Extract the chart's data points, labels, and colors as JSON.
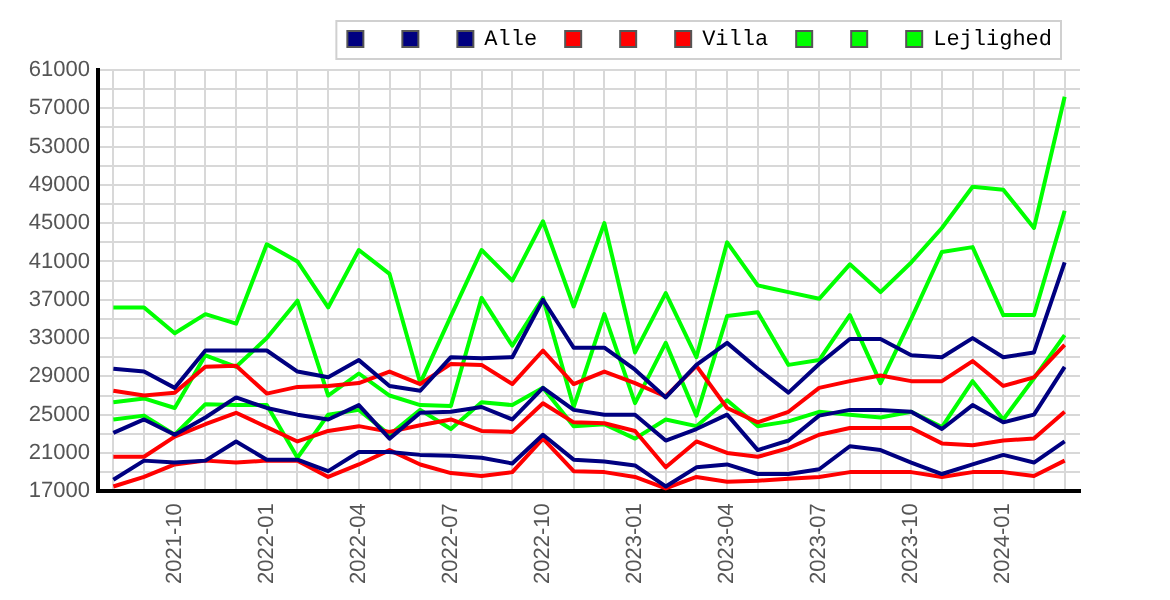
{
  "chart_data": {
    "type": "line",
    "categories": [
      null,
      null,
      "2021-10",
      null,
      null,
      "2022-01",
      null,
      null,
      "2022-04",
      null,
      null,
      "2022-07",
      null,
      null,
      "2022-10",
      null,
      null,
      "2023-01",
      null,
      null,
      "2023-04",
      null,
      null,
      "2023-07",
      null,
      null,
      "2023-10",
      null,
      null,
      "2024-01",
      null,
      null
    ],
    "series": [
      {
        "color": "#000080",
        "values": [
          18200,
          20200,
          20000,
          20200,
          22200,
          20300,
          20300,
          19100,
          21100,
          21100,
          20800,
          20700,
          20500,
          19900,
          22900,
          20300,
          20100,
          19700,
          17500,
          19500,
          19800,
          18800,
          18800,
          19300,
          21700,
          21300,
          20000,
          18800,
          19800,
          20800,
          20000,
          22200
        ]
      },
      {
        "color": "#000080",
        "values": [
          29800,
          29500,
          27800,
          31700,
          31700,
          31700,
          29500,
          28900,
          30700,
          28000,
          27500,
          31000,
          30900,
          31000,
          37000,
          32000,
          32000,
          29700,
          26800,
          30200,
          32500,
          29800,
          27300,
          30300,
          32900,
          32900,
          31200,
          31000,
          33000,
          31000,
          31500,
          40900
        ]
      },
      {
        "name": "Alle",
        "color": "#000080",
        "values": [
          23100,
          24500,
          22900,
          24700,
          26800,
          25700,
          25000,
          24500,
          26000,
          22500,
          25200,
          25300,
          25800,
          24500,
          27800,
          25500,
          25000,
          25000,
          22300,
          23500,
          25000,
          21300,
          22300,
          24900,
          25500,
          25500,
          25300,
          23500,
          26000,
          24200,
          25000,
          30000
        ]
      },
      {
        "color": "#ff0000",
        "values": [
          17500,
          18500,
          19800,
          20200,
          20000,
          20200,
          20200,
          18500,
          19800,
          21300,
          19800,
          18900,
          18600,
          19000,
          22500,
          19100,
          19000,
          18500,
          17300,
          18500,
          18000,
          18100,
          18300,
          18500,
          19000,
          19000,
          19000,
          18500,
          19000,
          19000,
          18600,
          20200
        ]
      },
      {
        "color": "#ff0000",
        "values": [
          27500,
          27000,
          27300,
          30000,
          30100,
          27200,
          27900,
          28000,
          28300,
          29500,
          28200,
          30300,
          30200,
          28200,
          31700,
          28200,
          29500,
          28300,
          26900,
          30100,
          25700,
          24200,
          25300,
          27800,
          28500,
          29100,
          28500,
          28500,
          30600,
          28000,
          28900,
          32300
        ]
      },
      {
        "name": "Villa",
        "color": "#ff0000",
        "values": [
          20600,
          20600,
          22700,
          24000,
          25200,
          23700,
          22200,
          23300,
          23800,
          23200,
          23900,
          24500,
          23300,
          23200,
          26200,
          24200,
          24100,
          23300,
          19500,
          22200,
          21000,
          20600,
          21500,
          22900,
          23600,
          23600,
          23600,
          22000,
          21800,
          22300,
          22500,
          25300
        ]
      },
      {
        "color": "#00ff00",
        "values": [
          24500,
          24900,
          22900,
          26100,
          26000,
          26000,
          20500,
          25000,
          25500,
          22900,
          25500,
          23500,
          26300,
          26000,
          27800,
          23800,
          24000,
          22500,
          24500,
          23800,
          26500,
          23800,
          24300,
          25300,
          25000,
          24700,
          25300,
          23700,
          28500,
          24500,
          28800,
          33300
        ]
      },
      {
        "color": "#00ff00",
        "values": [
          36200,
          36200,
          33500,
          35500,
          34500,
          42800,
          41000,
          36200,
          42200,
          39700,
          28300,
          35300,
          42200,
          39000,
          45200,
          36300,
          45000,
          31500,
          37700,
          31000,
          43000,
          38500,
          37800,
          37100,
          40700,
          37800,
          40900,
          44500,
          48800,
          48500,
          44500,
          58200
        ]
      },
      {
        "name": "Lejlighed",
        "color": "#00ff00",
        "values": [
          26300,
          26700,
          25700,
          31200,
          30000,
          33000,
          36900,
          27000,
          29300,
          27000,
          26000,
          25900,
          37200,
          32200,
          37200,
          25800,
          35500,
          26200,
          32500,
          24900,
          35300,
          35700,
          30200,
          30700,
          35400,
          28300,
          35000,
          42000,
          42500,
          35400,
          35400,
          46300
        ]
      }
    ],
    "ylim": [
      17000,
      61000
    ],
    "yticks": [
      17000,
      {
        "value": 19000,
        "label": null
      },
      21000,
      {
        "value": 23000,
        "label": null
      },
      25000,
      {
        "value": 27000,
        "label": null
      },
      29000,
      {
        "value": 31000,
        "label": null
      },
      33000,
      {
        "value": 35000,
        "label": null
      },
      37000,
      {
        "value": 39000,
        "label": null
      },
      41000,
      {
        "value": 43000,
        "label": null
      },
      45000,
      {
        "value": 47000,
        "label": null
      },
      49000,
      {
        "value": 51000,
        "label": null
      },
      53000,
      {
        "value": 55000,
        "label": null
      },
      57000,
      {
        "value": 59000,
        "label": null
      },
      61000
    ],
    "grid": true,
    "legend": "top right",
    "marker": "none",
    "line_style": "solid"
  }
}
